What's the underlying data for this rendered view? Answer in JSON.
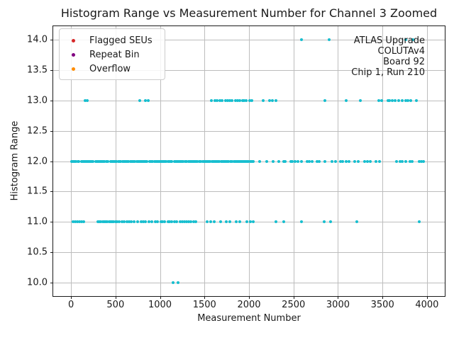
{
  "chart_data": {
    "type": "scatter",
    "title": "Histogram Range vs Measurement Number for Channel 3 Zoomed",
    "xlabel": "Measurement Number",
    "ylabel": "Histogram Range",
    "xlim": [
      -200,
      4200
    ],
    "ylim": [
      9.78,
      14.22
    ],
    "grid": true,
    "xtick_values": [
      0,
      500,
      1000,
      1500,
      2000,
      2500,
      3000,
      3500,
      4000
    ],
    "xtick_labels": [
      "0",
      "500",
      "1000",
      "1500",
      "2000",
      "2500",
      "3000",
      "3500",
      "4000"
    ],
    "ytick_values": [
      10.0,
      10.5,
      11.0,
      11.5,
      12.0,
      12.5,
      13.0,
      13.5,
      14.0
    ],
    "ytick_labels": [
      "10.0",
      "10.5",
      "11.0",
      "11.5",
      "12.0",
      "12.5",
      "13.0",
      "13.5",
      "14.0"
    ],
    "point_color": "#17becf",
    "legend": {
      "position": "upper left",
      "entries": [
        {
          "label": "Flagged SEUs",
          "color": "#d62728"
        },
        {
          "label": "Repeat Bin",
          "color": "#800080"
        },
        {
          "label": "Overflow",
          "color": "#ff8c00"
        }
      ]
    },
    "annotation": {
      "position": "upper right",
      "lines": [
        "ATLAS Upgrade",
        "COLUTAv4",
        "Board 92",
        "Chip 1, Run 210"
      ]
    },
    "series": [
      {
        "name": "histogram-range-points",
        "color": "#17becf",
        "groups": [
          {
            "y": 14,
            "x": [
              2590,
              2900,
              3760,
              3845
            ]
          },
          {
            "y": 13,
            "x": [
              155,
              185,
              770,
              840,
              870,
              1580,
              1618,
              1645,
              1672,
              1700,
              1740,
              1762,
              1784,
              1806,
              1850,
              1872,
              1894,
              1925,
              1947,
              1969,
              2010,
              2035,
              2160,
              2230,
              2265,
              2300,
              2855,
              3095,
              3255,
              3455,
              3490,
              3560,
              3582,
              3612,
              3640,
              3685,
              3725,
              3762,
              3788,
              3815,
              3885
            ]
          },
          {
            "y": 12,
            "x": [
              8,
              25,
              42,
              59,
              76,
              90,
              115,
              132,
              149,
              166,
              183,
              200,
              217,
              234,
              250,
              275,
              292,
              309,
              326,
              343,
              360,
              377,
              394,
              411,
              445,
              462,
              479,
              496,
              513,
              530,
              547,
              560,
              580,
              597,
              614,
              631,
              648,
              665,
              682,
              700,
              720,
              737,
              754,
              771,
              788,
              805,
              822,
              839,
              856,
              885,
              902,
              919,
              936,
              953,
              970,
              987,
              1000,
              1020,
              1037,
              1054,
              1071,
              1088,
              1105,
              1122,
              1135,
              1160,
              1177,
              1194,
              1211,
              1228,
              1245,
              1262,
              1279,
              1296,
              1320,
              1337,
              1354,
              1371,
              1388,
              1405,
              1422,
              1439,
              1456,
              1480,
              1497,
              1514,
              1531,
              1548,
              1565,
              1582,
              1599,
              1616,
              1635,
              1652,
              1669,
              1686,
              1703,
              1720,
              1737,
              1754,
              1771,
              1795,
              1812,
              1829,
              1846,
              1863,
              1880,
              1897,
              1914,
              1930,
              1945,
              1962,
              1979,
              1996,
              2013,
              2030,
              2045,
              2120,
              2200,
              2270,
              2335,
              2390,
              2410,
              2470,
              2490,
              2515,
              2550,
              2590,
              2655,
              2680,
              2710,
              2765,
              2790,
              2855,
              2935,
              2975,
              3030,
              3055,
              3090,
              3120,
              3190,
              3230,
              3300,
              3330,
              3365,
              3430,
              3470,
              3660,
              3700,
              3725,
              3765,
              3810,
              3830,
              3910,
              3935,
              3960
            ]
          },
          {
            "y": 11,
            "x": [
              20,
              45,
              70,
              95,
              120,
              140,
              300,
              318,
              336,
              354,
              372,
              390,
              408,
              426,
              444,
              462,
              480,
              500,
              520,
              545,
              570,
              598,
              625,
              650,
              675,
              705,
              745,
              785,
              815,
              840,
              875,
              905,
              945,
              975,
              1008,
              1025,
              1055,
              1090,
              1105,
              1130,
              1160,
              1185,
              1225,
              1250,
              1275,
              1300,
              1325,
              1350,
              1375,
              1400,
              1530,
              1570,
              1610,
              1680,
              1745,
              1785,
              1855,
              1895,
              1975,
              2015,
              2048,
              2305,
              2390,
              2590,
              2845,
              2920,
              3215,
              3910
            ]
          },
          {
            "y": 10,
            "x": [
              1150,
              1205
            ]
          }
        ]
      }
    ]
  }
}
